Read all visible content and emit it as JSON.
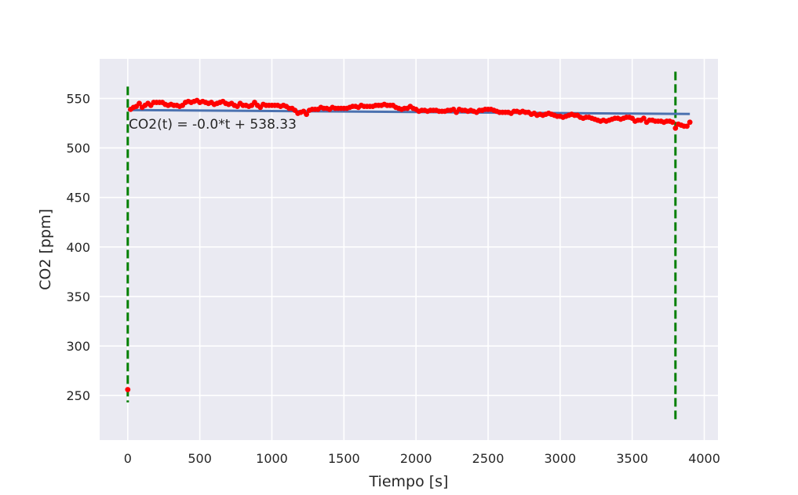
{
  "chart_data": {
    "type": "scatter",
    "xlabel": "Tiempo [s]",
    "ylabel": "CO2 [ppm]",
    "xlim": [
      -195,
      4095
    ],
    "ylim": [
      205,
      590
    ],
    "xticks": [
      0,
      500,
      1000,
      1500,
      2000,
      2500,
      3000,
      3500,
      4000
    ],
    "yticks": [
      250,
      300,
      350,
      400,
      450,
      500,
      550
    ],
    "grid": true,
    "background_color": "#eaeaf2",
    "annotation": "CO2(t) = -0.0*t + 538.33",
    "series": [
      {
        "kind": "scatter",
        "color": "#ff0000",
        "points": [
          [
            0,
            256
          ],
          [
            20,
            539
          ],
          [
            40,
            541
          ],
          [
            60,
            542
          ],
          [
            80,
            545
          ],
          [
            100,
            541
          ],
          [
            120,
            543
          ],
          [
            140,
            545
          ],
          [
            160,
            543
          ],
          [
            180,
            546
          ],
          [
            200,
            546
          ],
          [
            220,
            546
          ],
          [
            240,
            546
          ],
          [
            260,
            544
          ],
          [
            280,
            543
          ],
          [
            300,
            544
          ],
          [
            320,
            543
          ],
          [
            340,
            543
          ],
          [
            360,
            542
          ],
          [
            380,
            543
          ],
          [
            400,
            546
          ],
          [
            420,
            547
          ],
          [
            440,
            546
          ],
          [
            460,
            547
          ],
          [
            480,
            548
          ],
          [
            500,
            546
          ],
          [
            520,
            547
          ],
          [
            540,
            546
          ],
          [
            560,
            545
          ],
          [
            580,
            546
          ],
          [
            600,
            544
          ],
          [
            620,
            545
          ],
          [
            640,
            546
          ],
          [
            660,
            547
          ],
          [
            680,
            545
          ],
          [
            700,
            544
          ],
          [
            720,
            545
          ],
          [
            740,
            543
          ],
          [
            760,
            542
          ],
          [
            780,
            545
          ],
          [
            800,
            543
          ],
          [
            820,
            543
          ],
          [
            840,
            542
          ],
          [
            860,
            543
          ],
          [
            880,
            546
          ],
          [
            900,
            543
          ],
          [
            920,
            541
          ],
          [
            940,
            544
          ],
          [
            960,
            543
          ],
          [
            980,
            543
          ],
          [
            1000,
            543
          ],
          [
            1020,
            543
          ],
          [
            1040,
            543
          ],
          [
            1060,
            542
          ],
          [
            1080,
            543
          ],
          [
            1100,
            542
          ],
          [
            1120,
            540
          ],
          [
            1140,
            540
          ],
          [
            1160,
            538
          ],
          [
            1180,
            535
          ],
          [
            1200,
            536
          ],
          [
            1220,
            537
          ],
          [
            1240,
            534
          ],
          [
            1260,
            538
          ],
          [
            1280,
            539
          ],
          [
            1300,
            539
          ],
          [
            1320,
            539
          ],
          [
            1340,
            541
          ],
          [
            1360,
            540
          ],
          [
            1380,
            540
          ],
          [
            1400,
            539
          ],
          [
            1420,
            541
          ],
          [
            1440,
            540
          ],
          [
            1460,
            540
          ],
          [
            1480,
            540
          ],
          [
            1500,
            540
          ],
          [
            1520,
            540
          ],
          [
            1540,
            541
          ],
          [
            1560,
            542
          ],
          [
            1580,
            542
          ],
          [
            1600,
            541
          ],
          [
            1620,
            543
          ],
          [
            1640,
            542
          ],
          [
            1660,
            542
          ],
          [
            1680,
            542
          ],
          [
            1700,
            542
          ],
          [
            1720,
            543
          ],
          [
            1740,
            543
          ],
          [
            1760,
            543
          ],
          [
            1780,
            544
          ],
          [
            1800,
            543
          ],
          [
            1820,
            543
          ],
          [
            1840,
            543
          ],
          [
            1860,
            541
          ],
          [
            1880,
            540
          ],
          [
            1900,
            539
          ],
          [
            1920,
            540
          ],
          [
            1940,
            540
          ],
          [
            1960,
            542
          ],
          [
            1980,
            540
          ],
          [
            2000,
            539
          ],
          [
            2020,
            537
          ],
          [
            2040,
            538
          ],
          [
            2060,
            538
          ],
          [
            2080,
            537
          ],
          [
            2100,
            538
          ],
          [
            2120,
            538
          ],
          [
            2140,
            538
          ],
          [
            2160,
            537
          ],
          [
            2180,
            537
          ],
          [
            2200,
            537
          ],
          [
            2220,
            538
          ],
          [
            2240,
            538
          ],
          [
            2260,
            539
          ],
          [
            2280,
            536
          ],
          [
            2300,
            539
          ],
          [
            2320,
            538
          ],
          [
            2340,
            538
          ],
          [
            2360,
            537
          ],
          [
            2380,
            538
          ],
          [
            2400,
            537
          ],
          [
            2420,
            536
          ],
          [
            2440,
            538
          ],
          [
            2460,
            538
          ],
          [
            2480,
            539
          ],
          [
            2500,
            539
          ],
          [
            2520,
            539
          ],
          [
            2540,
            538
          ],
          [
            2560,
            537
          ],
          [
            2580,
            536
          ],
          [
            2600,
            536
          ],
          [
            2620,
            536
          ],
          [
            2640,
            536
          ],
          [
            2660,
            535
          ],
          [
            2680,
            537
          ],
          [
            2700,
            537
          ],
          [
            2720,
            536
          ],
          [
            2740,
            537
          ],
          [
            2760,
            536
          ],
          [
            2780,
            536
          ],
          [
            2800,
            534
          ],
          [
            2820,
            535
          ],
          [
            2840,
            533
          ],
          [
            2860,
            534
          ],
          [
            2880,
            533
          ],
          [
            2900,
            534
          ],
          [
            2920,
            535
          ],
          [
            2940,
            534
          ],
          [
            2960,
            533
          ],
          [
            2980,
            532
          ],
          [
            3000,
            532
          ],
          [
            3020,
            531
          ],
          [
            3040,
            532
          ],
          [
            3060,
            533
          ],
          [
            3080,
            534
          ],
          [
            3100,
            533
          ],
          [
            3120,
            533
          ],
          [
            3140,
            531
          ],
          [
            3160,
            530
          ],
          [
            3180,
            531
          ],
          [
            3200,
            531
          ],
          [
            3220,
            530
          ],
          [
            3240,
            529
          ],
          [
            3260,
            528
          ],
          [
            3280,
            527
          ],
          [
            3300,
            528
          ],
          [
            3320,
            527
          ],
          [
            3340,
            528
          ],
          [
            3360,
            529
          ],
          [
            3380,
            530
          ],
          [
            3400,
            530
          ],
          [
            3420,
            529
          ],
          [
            3440,
            530
          ],
          [
            3460,
            531
          ],
          [
            3480,
            531
          ],
          [
            3500,
            530
          ],
          [
            3520,
            527
          ],
          [
            3540,
            528
          ],
          [
            3560,
            528
          ],
          [
            3580,
            530
          ],
          [
            3600,
            526
          ],
          [
            3620,
            528
          ],
          [
            3640,
            528
          ],
          [
            3660,
            527
          ],
          [
            3680,
            527
          ],
          [
            3700,
            527
          ],
          [
            3720,
            526
          ],
          [
            3740,
            527
          ],
          [
            3760,
            527
          ],
          [
            3780,
            526
          ],
          [
            3800,
            520
          ],
          [
            3820,
            524
          ],
          [
            3840,
            523
          ],
          [
            3860,
            522
          ],
          [
            3880,
            522
          ],
          [
            3900,
            526
          ]
        ]
      },
      {
        "kind": "line",
        "color": "#4c72b0",
        "x": [
          0,
          3900
        ],
        "y": [
          538.33,
          534.3
        ]
      }
    ],
    "vlines": [
      {
        "x": 0,
        "ymin": 243,
        "ymax": 562,
        "color": "#007f00",
        "style": "dashed"
      },
      {
        "x": 3800,
        "ymin": 225,
        "ymax": 577,
        "color": "#007f00",
        "style": "dashed"
      }
    ]
  }
}
